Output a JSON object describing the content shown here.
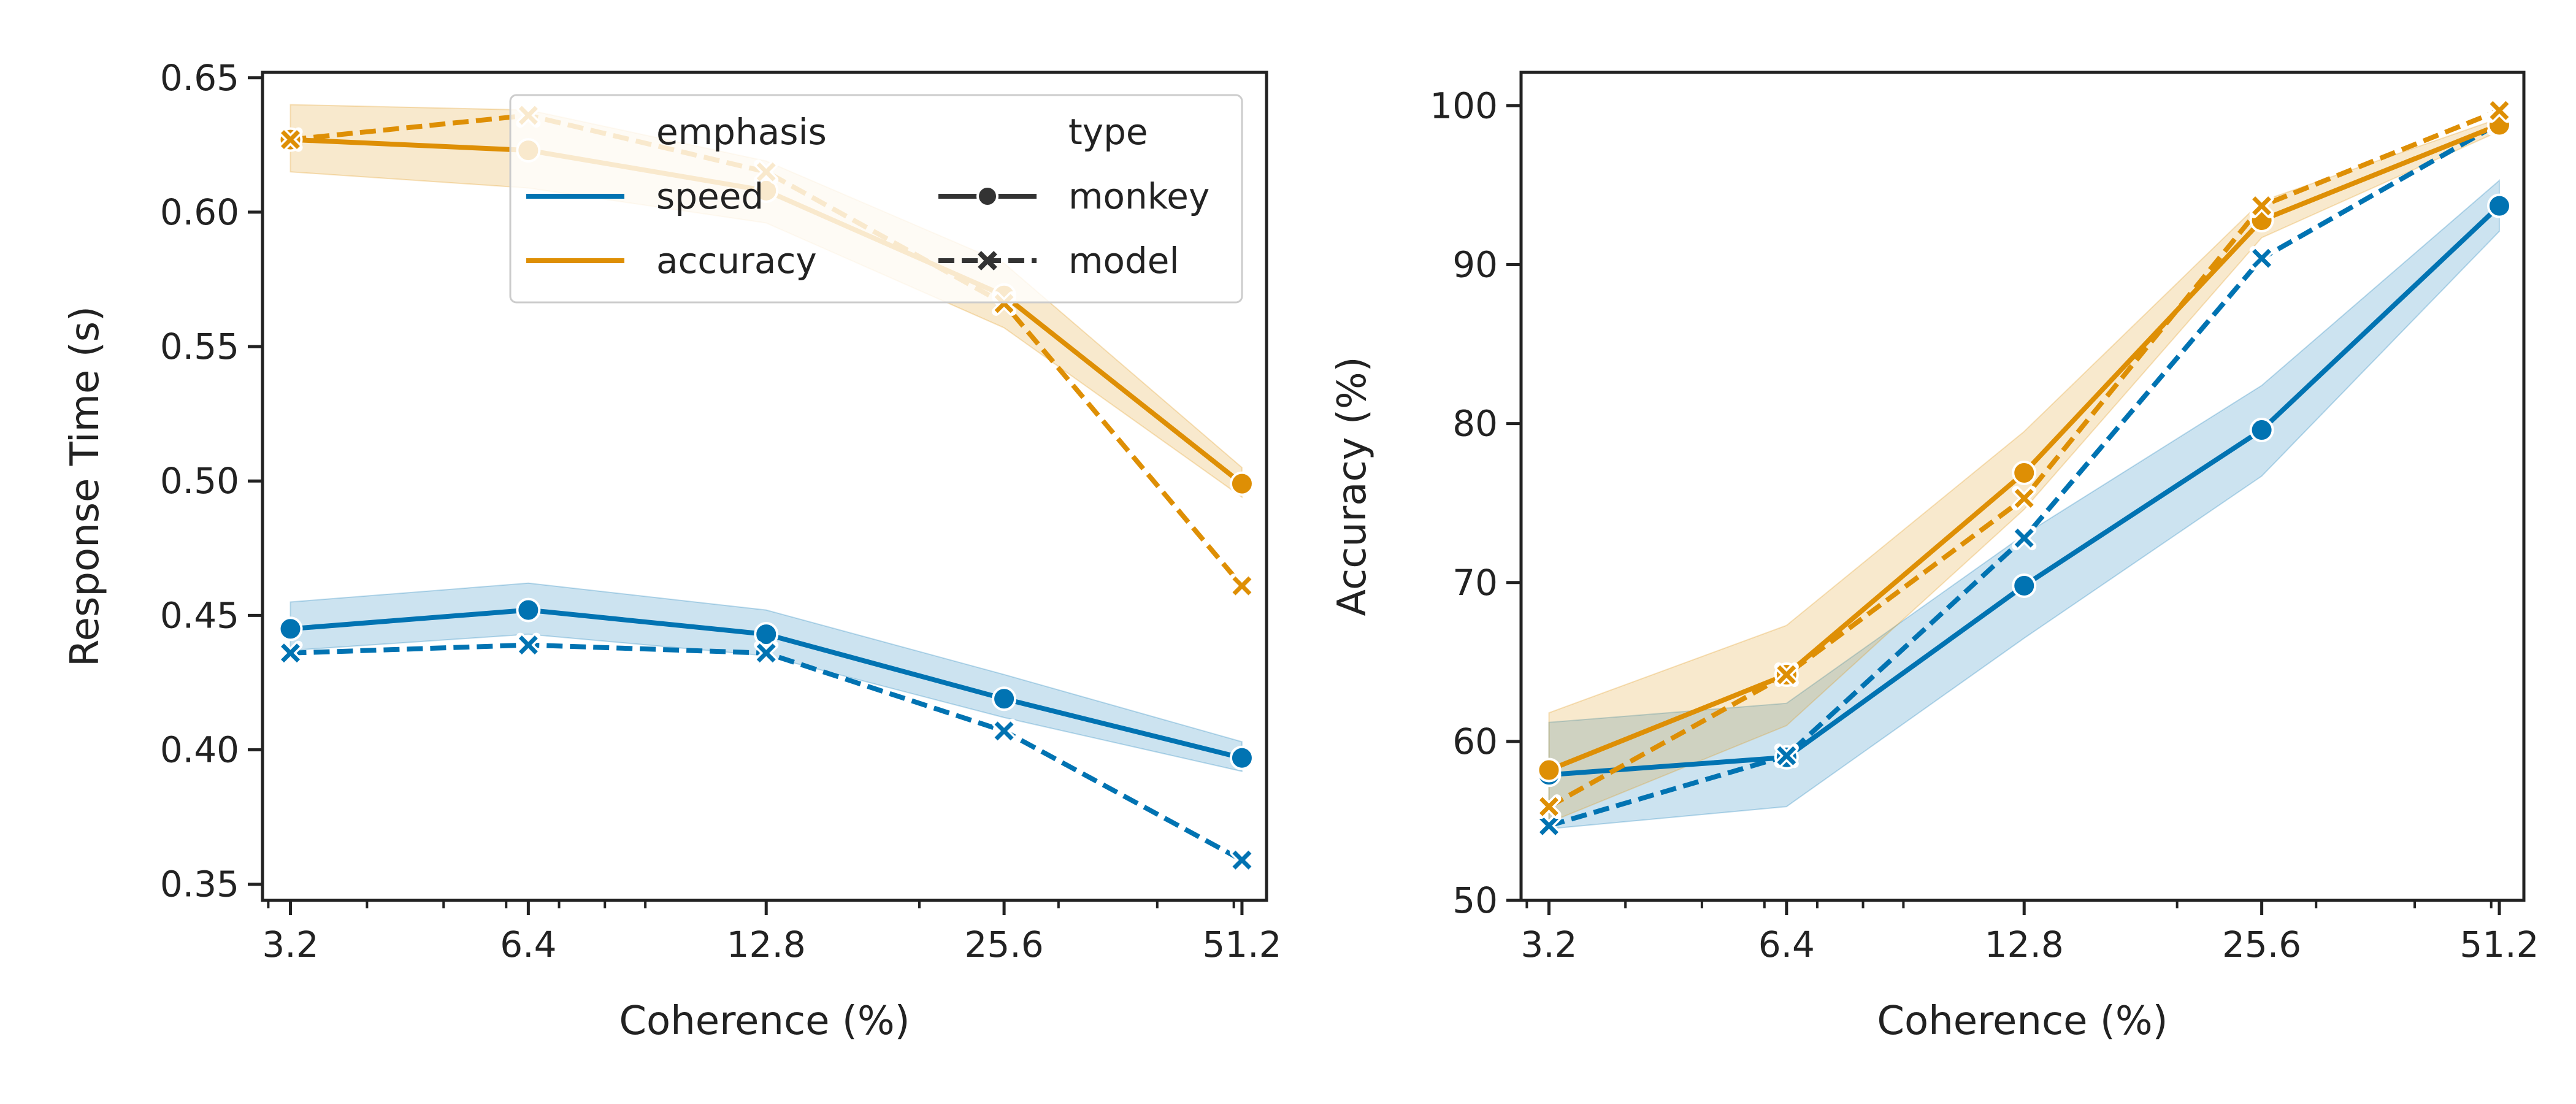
{
  "colors": {
    "speed": "#0173b2",
    "accuracy": "#de8f05",
    "axis": "#222222",
    "legend_marker": "#333333"
  },
  "legend": {
    "emphasis_title": "emphasis",
    "emphasis_items": [
      {
        "label": "speed",
        "key": "speed"
      },
      {
        "label": "accuracy",
        "key": "accuracy"
      }
    ],
    "type_title": "type",
    "type_items": [
      {
        "label": "monkey",
        "marker": "circle",
        "linestyle": "solid"
      },
      {
        "label": "model",
        "marker": "x",
        "linestyle": "dashed"
      }
    ],
    "placement": "upper-right of left panel"
  },
  "chart_data": [
    {
      "type": "line",
      "x_scale": "log",
      "x": [
        3.2,
        6.4,
        12.8,
        25.6,
        51.2
      ],
      "xticklabels": [
        "3.2",
        "6.4",
        "12.8",
        "25.6",
        "51.2"
      ],
      "yticks": [
        0.35,
        0.4,
        0.45,
        0.5,
        0.55,
        0.6,
        0.65
      ],
      "yticklabels": [
        "0.35",
        "0.40",
        "0.45",
        "0.50",
        "0.55",
        "0.60",
        "0.65"
      ],
      "xlabel": "Coherence (%)",
      "ylabel": "Response Time (s)",
      "ylim": [
        0.344,
        0.652
      ],
      "xlim": [
        2.95,
        55.0
      ],
      "grid": false,
      "series": [
        {
          "emphasis": "speed",
          "type": "monkey",
          "values": [
            0.445,
            0.452,
            0.443,
            0.419,
            0.397
          ],
          "ci_low": [
            0.437,
            0.443,
            0.435,
            0.412,
            0.392
          ],
          "ci_high": [
            0.455,
            0.462,
            0.452,
            0.428,
            0.403
          ]
        },
        {
          "emphasis": "speed",
          "type": "model",
          "values": [
            0.436,
            0.439,
            0.436,
            0.407,
            0.359
          ]
        },
        {
          "emphasis": "accuracy",
          "type": "monkey",
          "values": [
            0.627,
            0.623,
            0.608,
            0.569,
            0.499
          ],
          "ci_low": [
            0.615,
            0.609,
            0.596,
            0.557,
            0.494
          ],
          "ci_high": [
            0.64,
            0.638,
            0.619,
            0.581,
            0.505
          ]
        },
        {
          "emphasis": "accuracy",
          "type": "model",
          "values": [
            0.627,
            0.636,
            0.615,
            0.566,
            0.461
          ]
        }
      ]
    },
    {
      "type": "line",
      "x_scale": "log",
      "x": [
        3.2,
        6.4,
        12.8,
        25.6,
        51.2
      ],
      "xticklabels": [
        "3.2",
        "6.4",
        "12.8",
        "25.6",
        "51.2"
      ],
      "yticks": [
        50,
        60,
        70,
        80,
        90,
        100
      ],
      "yticklabels": [
        "50",
        "60",
        "70",
        "80",
        "90",
        "100"
      ],
      "xlabel": "Coherence (%)",
      "ylabel": "Accuracy (%)",
      "ylim": [
        50,
        102.1
      ],
      "xlim": [
        2.95,
        55.0
      ],
      "grid": false,
      "series": [
        {
          "emphasis": "speed",
          "type": "monkey",
          "values": [
            57.9,
            59.0,
            69.8,
            79.6,
            93.7
          ],
          "ci_low": [
            54.5,
            55.9,
            66.5,
            76.7,
            92.1
          ],
          "ci_high": [
            61.2,
            62.4,
            73.0,
            82.4,
            95.3
          ]
        },
        {
          "emphasis": "speed",
          "type": "model",
          "values": [
            54.7,
            59.1,
            72.8,
            90.4,
            98.9
          ]
        },
        {
          "emphasis": "accuracy",
          "type": "monkey",
          "values": [
            58.2,
            64.2,
            76.9,
            92.8,
            98.8
          ],
          "ci_low": [
            54.9,
            61.0,
            74.6,
            91.7,
            98.4
          ],
          "ci_high": [
            61.8,
            67.3,
            79.5,
            94.0,
            99.2
          ]
        },
        {
          "emphasis": "accuracy",
          "type": "model",
          "values": [
            55.9,
            64.2,
            75.3,
            93.7,
            99.7
          ]
        }
      ]
    }
  ]
}
